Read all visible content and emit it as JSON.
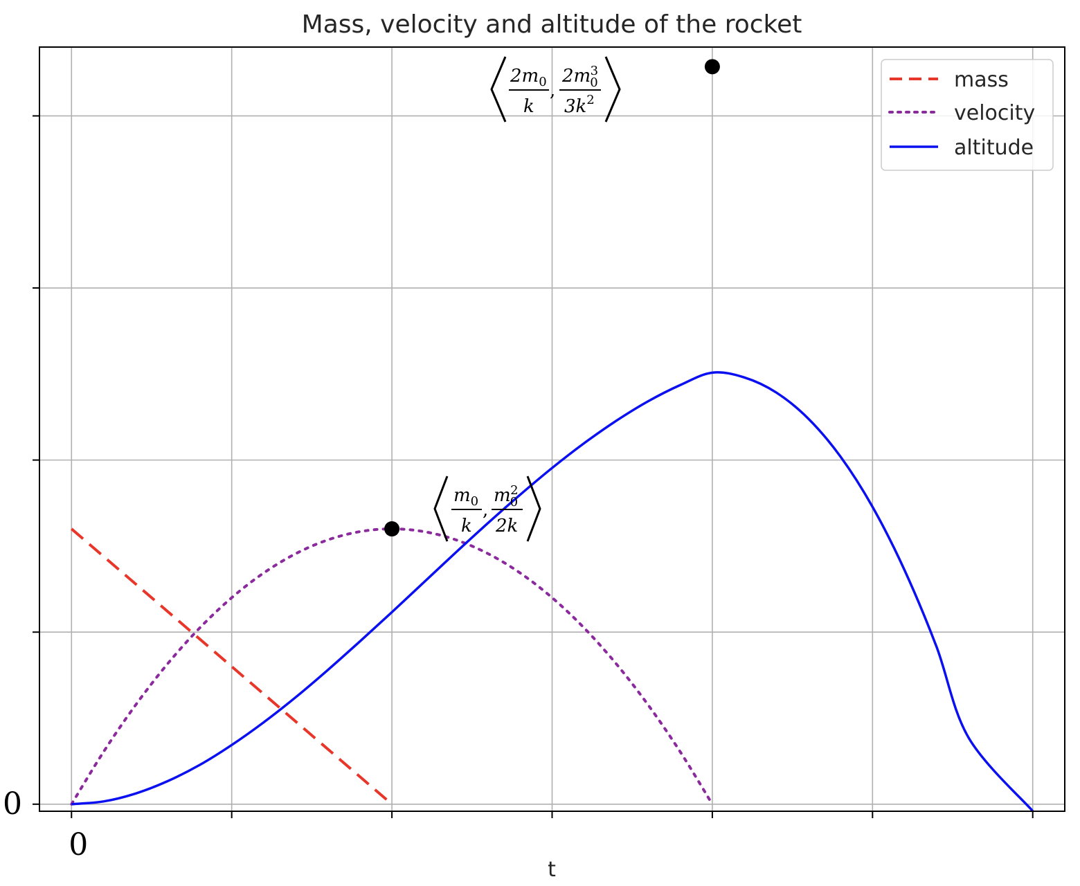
{
  "chart_data": {
    "type": "line",
    "title": "Mass, velocity and altitude of the rocket",
    "xlabel": "t",
    "ylabel": "",
    "xlim": [
      -0.1,
      3.1
    ],
    "ylim": [
      -0.0205,
      2.2
    ],
    "x_tick_positions": [
      0,
      0.5,
      1,
      1.5,
      2,
      2.5,
      3
    ],
    "y_tick_positions": [
      0,
      0.5,
      1,
      1.5,
      2
    ],
    "x_tick_labels": [
      "0",
      "",
      "",
      "",
      "",
      "",
      ""
    ],
    "y_tick_labels": [
      "0",
      "",
      "",
      "",
      ""
    ],
    "grid": true,
    "legend_position": "top-right",
    "series": [
      {
        "name": "mass",
        "style": "dashed",
        "color": "#e8372a",
        "x": [
          0,
          1
        ],
        "y": [
          0.8,
          0
        ]
      },
      {
        "name": "velocity",
        "style": "dotted",
        "color": "#8b2a9c",
        "x": [
          0,
          0.1,
          0.2,
          0.3,
          0.4,
          0.5,
          0.6,
          0.7,
          0.8,
          0.9,
          1.0,
          1.1,
          1.2,
          1.3,
          1.4,
          1.5,
          1.6,
          1.7,
          1.8,
          1.9,
          2.0
        ],
        "y": [
          0,
          0.152,
          0.288,
          0.408,
          0.512,
          0.6,
          0.672,
          0.728,
          0.768,
          0.792,
          0.8,
          0.792,
          0.768,
          0.728,
          0.672,
          0.6,
          0.512,
          0.408,
          0.288,
          0.152,
          0
        ]
      },
      {
        "name": "altitude",
        "style": "solid",
        "color": "#0a10f0",
        "x": [
          0,
          0.1,
          0.2,
          0.3,
          0.4,
          0.5,
          0.6,
          0.7,
          0.8,
          0.9,
          1.0,
          1.1,
          1.2,
          1.3,
          1.4,
          1.5,
          1.6,
          1.7,
          1.8,
          1.9,
          2.0,
          2.1,
          2.2,
          2.3,
          2.4,
          2.5,
          2.6,
          2.7,
          2.8,
          2.9,
          3.0
        ],
        "y": [
          0,
          0.008,
          0.031,
          0.067,
          0.114,
          0.172,
          0.238,
          0.311,
          0.39,
          0.473,
          0.558,
          0.645,
          0.732,
          0.817,
          0.899,
          0.977,
          1.049,
          1.114,
          1.171,
          1.218,
          1.254,
          1.24,
          1.196,
          1.12,
          1.01,
          0.864,
          0.68,
          0.457,
          0.193,
          -0.113,
          -0.02
        ]
      }
    ],
    "annotations": [
      {
        "x": 1,
        "y": 0.8,
        "label_numerator_left": "m",
        "label_denominator_left": "k",
        "label_numerator_right": "m",
        "label_denominator_right": "2k",
        "sub_left": "0",
        "sub_right": "0",
        "sup_right": "2"
      },
      {
        "x": 2,
        "y": 2.143,
        "label_numerator_left": "2m",
        "label_denominator_left": "k",
        "label_numerator_right": "2m",
        "label_denominator_right": "3k",
        "sub_left": "0",
        "sub_right": "0",
        "sup_right": "3",
        "sup_den_right": "2"
      }
    ]
  }
}
